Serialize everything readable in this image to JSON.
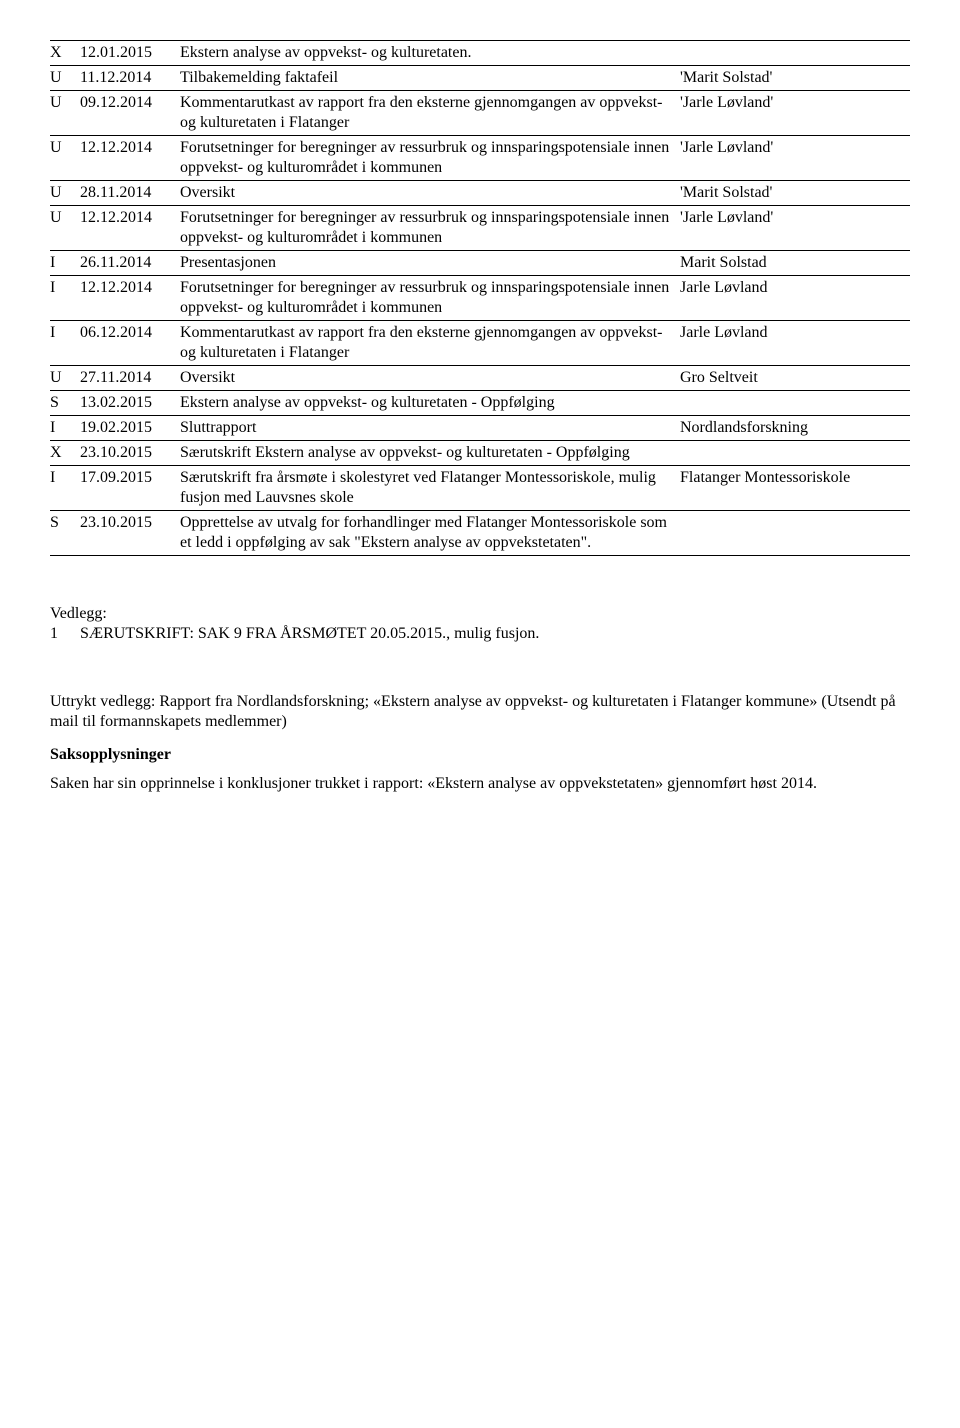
{
  "table": {
    "rows": [
      {
        "code": "X",
        "date": "12.01.2015",
        "text": "Ekstern analyse av oppvekst- og kulturetaten.",
        "author": "",
        "topBorder": true
      },
      {
        "code": "U",
        "date": "11.12.2014",
        "text": "Tilbakemelding faktafeil",
        "author": "'Marit Solstad'"
      },
      {
        "code": "U",
        "date": "09.12.2014",
        "text": "Kommentarutkast av rapport fra den eksterne gjennomgangen av oppvekst- og kulturetaten i Flatanger",
        "author": "'Jarle Løvland'"
      },
      {
        "code": "U",
        "date": "12.12.2014",
        "text": "Forutsetninger for beregninger av ressurbruk og innsparingspotensiale innen oppvekst- og kulturområdet i kommunen",
        "author": "'Jarle Løvland'"
      },
      {
        "code": "U",
        "date": "28.11.2014",
        "text": "Oversikt",
        "author": "'Marit Solstad'"
      },
      {
        "code": "U",
        "date": "12.12.2014",
        "text": "Forutsetninger for beregninger av ressurbruk og innsparingspotensiale innen oppvekst- og kulturområdet i kommunen",
        "author": "'Jarle Løvland'"
      },
      {
        "code": "I",
        "date": "26.11.2014",
        "text": "Presentasjonen",
        "author": "Marit Solstad"
      },
      {
        "code": "I",
        "date": "12.12.2014",
        "text": "Forutsetninger for beregninger av ressurbruk og innsparingspotensiale innen oppvekst- og kulturområdet i kommunen",
        "author": "Jarle Løvland"
      },
      {
        "code": "I",
        "date": "06.12.2014",
        "text": "Kommentarutkast av rapport fra den eksterne gjennomgangen av oppvekst- og kulturetaten i Flatanger",
        "author": "Jarle Løvland"
      },
      {
        "code": "U",
        "date": "27.11.2014",
        "text": "Oversikt",
        "author": "Gro Seltveit"
      },
      {
        "code": "S",
        "date": "13.02.2015",
        "text": "Ekstern analyse av oppvekst- og kulturetaten  -  Oppfølging",
        "author": ""
      },
      {
        "code": "I",
        "date": "19.02.2015",
        "text": "Sluttrapport",
        "author": "Nordlandsforskning"
      },
      {
        "code": "X",
        "date": "23.10.2015",
        "text": "Særutskrift Ekstern analyse av oppvekst- og kulturetaten  - Oppfølging",
        "author": ""
      },
      {
        "code": "I",
        "date": "17.09.2015",
        "text": "Særutskrift fra årsmøte i skolestyret ved Flatanger Montessoriskole, mulig fusjon med Lauvsnes skole",
        "author": "Flatanger Montessoriskole"
      },
      {
        "code": "S",
        "date": "23.10.2015",
        "text": "Opprettelse av utvalg for forhandlinger med Flatanger Montessoriskole som et ledd i oppfølging av sak \"Ekstern analyse av oppvekstetaten\".",
        "author": ""
      }
    ]
  },
  "vedlegg": {
    "title": "Vedlegg:",
    "num": "1",
    "text": "SÆRUTSKRIFT: SAK 9 FRA ÅRSMØTET 20.05.2015., mulig fusjon."
  },
  "uttrykt": "Uttrykt vedlegg: Rapport fra Nordlandsforskning; «Ekstern analyse av oppvekst- og kulturetaten i Flatanger kommune» (Utsendt på mail til formannskapets medlemmer)",
  "saksopp_heading": "Saksopplysninger",
  "saksopp_text": "Saken har sin opprinnelse i konklusjoner trukket i rapport: «Ekstern analyse av oppvekstetaten» gjennomført høst 2014."
}
